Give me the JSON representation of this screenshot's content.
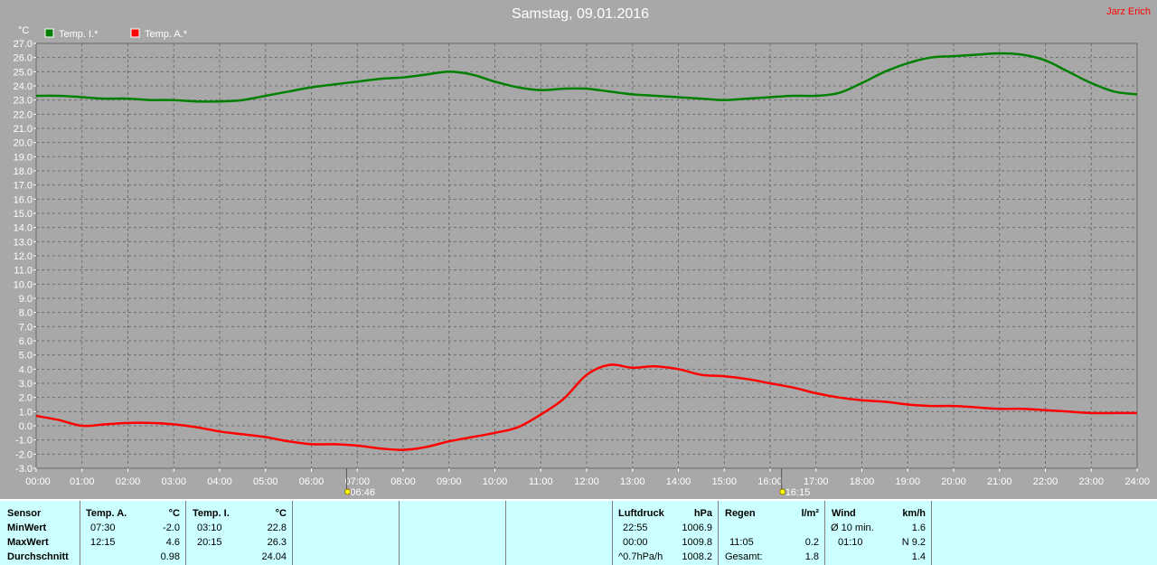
{
  "header": {
    "author": "Jarz Erich"
  },
  "chart_data": {
    "type": "line",
    "title": "Samstag, 09.01.2016",
    "ylabel": "°C",
    "ylim": [
      -3.0,
      27.0
    ],
    "yticks": [
      "27.0",
      "26.0",
      "25.0",
      "24.0",
      "23.0",
      "22.0",
      "21.0",
      "20.0",
      "19.0",
      "18.0",
      "17.0",
      "16.0",
      "15.0",
      "14.0",
      "13.0",
      "12.0",
      "11.0",
      "10.0",
      "9.0",
      "8.0",
      "7.0",
      "6.0",
      "5.0",
      "4.0",
      "3.0",
      "2.0",
      "1.0",
      "0.0",
      "-1.0",
      "-2.0",
      "-3.0"
    ],
    "xticks": [
      "00:00",
      "01:00",
      "02:00",
      "03:00",
      "04:00",
      "05:00",
      "06:00",
      "07:00",
      "08:00",
      "09:00",
      "10:00",
      "11:00",
      "12:00",
      "13:00",
      "14:00",
      "15:00",
      "16:00",
      "17:00",
      "18:00",
      "19:00",
      "20:00",
      "21:00",
      "22:00",
      "23:00",
      "24:00"
    ],
    "x_hours": [
      0,
      0.5,
      1,
      1.5,
      2,
      2.5,
      3,
      3.5,
      4,
      4.5,
      5,
      5.5,
      6,
      6.5,
      7,
      7.5,
      8,
      8.5,
      9,
      9.5,
      10,
      10.5,
      11,
      11.5,
      12,
      12.5,
      13,
      13.5,
      14,
      14.5,
      15,
      15.5,
      16,
      16.5,
      17,
      17.5,
      18,
      18.5,
      19,
      19.5,
      20,
      20.5,
      21,
      21.5,
      22,
      22.5,
      23,
      23.5,
      24
    ],
    "grid": true,
    "legend_position": "top-left",
    "series": [
      {
        "name": "Temp. I.*",
        "color": "#008000",
        "values": [
          23.3,
          23.3,
          23.2,
          23.1,
          23.1,
          23.0,
          23.0,
          22.9,
          22.9,
          23.0,
          23.3,
          23.6,
          23.9,
          24.1,
          24.3,
          24.5,
          24.6,
          24.8,
          25.0,
          24.8,
          24.3,
          23.9,
          23.7,
          23.8,
          23.8,
          23.6,
          23.4,
          23.3,
          23.2,
          23.1,
          23.0,
          23.1,
          23.2,
          23.3,
          23.3,
          23.5,
          24.2,
          25.0,
          25.6,
          26.0,
          26.1,
          26.2,
          26.3,
          26.2,
          25.8,
          25.0,
          24.2,
          23.6,
          23.4
        ]
      },
      {
        "name": "Temp. A.*",
        "color": "#ff0000",
        "values": [
          0.7,
          0.4,
          0.0,
          0.1,
          0.2,
          0.2,
          0.1,
          -0.1,
          -0.4,
          -0.6,
          -0.8,
          -1.1,
          -1.3,
          -1.3,
          -1.4,
          -1.6,
          -1.7,
          -1.5,
          -1.1,
          -0.8,
          -0.5,
          -0.1,
          0.8,
          1.9,
          3.6,
          4.3,
          4.1,
          4.2,
          4.0,
          3.6,
          3.5,
          3.3,
          3.0,
          2.7,
          2.3,
          2.0,
          1.8,
          1.7,
          1.5,
          1.4,
          1.4,
          1.3,
          1.2,
          1.2,
          1.1,
          1.0,
          0.9,
          0.9,
          0.9
        ]
      }
    ],
    "markers": [
      {
        "label": "06:46",
        "hour": 6.767
      },
      {
        "label": "16:15",
        "hour": 16.25
      }
    ]
  },
  "stats": {
    "sensor_col": {
      "header": "Sensor",
      "min": "MinWert",
      "max": "MaxWert",
      "avg": "Durchschnitt"
    },
    "temp_a": {
      "header": "Temp. A.",
      "unit": "°C",
      "min_time": "07:30",
      "min_val": "-2.0",
      "max_time": "12:15",
      "max_val": "4.6",
      "avg_val": "0.98"
    },
    "temp_i": {
      "header": "Temp. I.",
      "unit": "°C",
      "min_time": "03:10",
      "min_val": "22.8",
      "max_time": "20:15",
      "max_val": "26.3",
      "avg_val": "24.04"
    },
    "pressure": {
      "header": "Luftdruck",
      "unit": "hPa",
      "r1_time": "22:55",
      "r1_val": "1006.9",
      "r2_time": "00:00",
      "r2_val": "1009.8",
      "r3_time": "^0.7hPa/h",
      "r3_val": "1008.2"
    },
    "rain": {
      "header": "Regen",
      "unit": "l/m²",
      "r2_time": "11:05",
      "r2_val": "0.2",
      "r3_label": "Gesamt:",
      "r3_val": "1.8"
    },
    "wind": {
      "header": "Wind",
      "unit": "km/h",
      "r1_label": "Ø 10 min.",
      "r1_val": "1.6",
      "r2_time": "01:10",
      "r2_val": "N 9.2",
      "r3_val": "1.4"
    }
  }
}
